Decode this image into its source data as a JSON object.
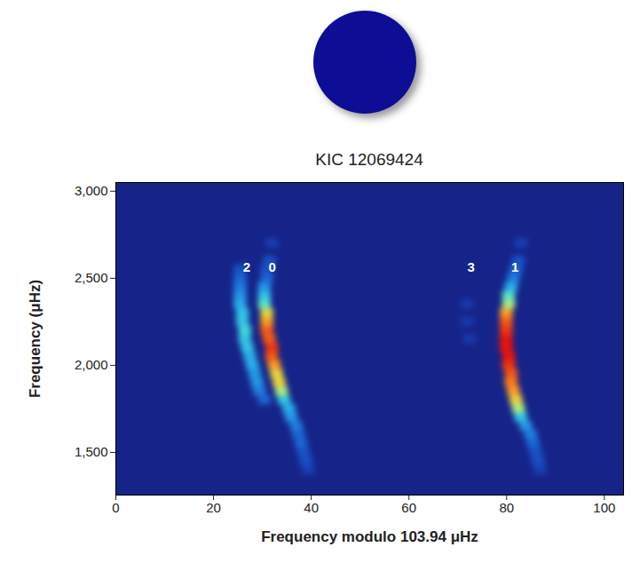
{
  "chart_data": {
    "type": "heatmap",
    "title": "KIC 12069424",
    "x_label": "Frequency modulo 103.94 μHz",
    "y_label": "Frequency (μHz)",
    "xlim": [
      0,
      103.94
    ],
    "ylim": [
      1255,
      3050
    ],
    "xticks": [
      0,
      20,
      40,
      60,
      80,
      100
    ],
    "yticks": [
      {
        "value": 1500,
        "label": "1,500"
      },
      {
        "value": 2000,
        "label": "2,000"
      },
      {
        "value": 2500,
        "label": "2,500"
      },
      {
        "value": 3000,
        "label": "3,000"
      }
    ],
    "clim": [
      0,
      10
    ],
    "cells": [
      {
        "x": 39.5,
        "y": 1400,
        "power": 1
      },
      {
        "x": 39,
        "y": 1450,
        "power": 1.5
      },
      {
        "x": 38.5,
        "y": 1500,
        "power": 1.5
      },
      {
        "x": 38,
        "y": 1550,
        "power": 2
      },
      {
        "x": 37.5,
        "y": 1600,
        "power": 2
      },
      {
        "x": 37,
        "y": 1650,
        "power": 2.5
      },
      {
        "x": 36,
        "y": 1700,
        "power": 3
      },
      {
        "x": 35.5,
        "y": 1750,
        "power": 3.5
      },
      {
        "x": 34.5,
        "y": 1800,
        "power": 4
      },
      {
        "x": 34,
        "y": 1850,
        "power": 6
      },
      {
        "x": 33.5,
        "y": 1900,
        "power": 7
      },
      {
        "x": 33,
        "y": 1950,
        "power": 7
      },
      {
        "x": 32.5,
        "y": 2000,
        "power": 8
      },
      {
        "x": 32,
        "y": 2050,
        "power": 9
      },
      {
        "x": 32,
        "y": 2100,
        "power": 9.5
      },
      {
        "x": 31.5,
        "y": 2150,
        "power": 9
      },
      {
        "x": 31,
        "y": 2200,
        "power": 9
      },
      {
        "x": 31,
        "y": 2250,
        "power": 8
      },
      {
        "x": 31,
        "y": 2300,
        "power": 7
      },
      {
        "x": 30.5,
        "y": 2350,
        "power": 5
      },
      {
        "x": 30.5,
        "y": 2400,
        "power": 4
      },
      {
        "x": 30.5,
        "y": 2450,
        "power": 3
      },
      {
        "x": 31,
        "y": 2500,
        "power": 2
      },
      {
        "x": 31,
        "y": 2550,
        "power": 1.5
      },
      {
        "x": 31.5,
        "y": 2600,
        "power": 1.5
      },
      {
        "x": 32,
        "y": 2700,
        "power": 1
      },
      {
        "x": 30.5,
        "y": 1800,
        "power": 2
      },
      {
        "x": 29.5,
        "y": 1850,
        "power": 2.5
      },
      {
        "x": 29,
        "y": 1900,
        "power": 3
      },
      {
        "x": 28.5,
        "y": 1950,
        "power": 3
      },
      {
        "x": 28,
        "y": 2000,
        "power": 3.5
      },
      {
        "x": 27.5,
        "y": 2050,
        "power": 3.5
      },
      {
        "x": 27,
        "y": 2100,
        "power": 4
      },
      {
        "x": 26.5,
        "y": 2150,
        "power": 4
      },
      {
        "x": 26.5,
        "y": 2200,
        "power": 4.5
      },
      {
        "x": 26,
        "y": 2250,
        "power": 4
      },
      {
        "x": 26,
        "y": 2300,
        "power": 4
      },
      {
        "x": 25.5,
        "y": 2350,
        "power": 3.5
      },
      {
        "x": 25.5,
        "y": 2400,
        "power": 3
      },
      {
        "x": 25.5,
        "y": 2450,
        "power": 2.5
      },
      {
        "x": 25.5,
        "y": 2500,
        "power": 2
      },
      {
        "x": 25.5,
        "y": 2550,
        "power": 1.5
      },
      {
        "x": 87,
        "y": 1400,
        "power": 1
      },
      {
        "x": 86.5,
        "y": 1450,
        "power": 1.5
      },
      {
        "x": 86,
        "y": 1500,
        "power": 1.5
      },
      {
        "x": 85.5,
        "y": 1550,
        "power": 2
      },
      {
        "x": 85,
        "y": 1600,
        "power": 2.5
      },
      {
        "x": 84,
        "y": 1650,
        "power": 3
      },
      {
        "x": 83,
        "y": 1700,
        "power": 4
      },
      {
        "x": 82.5,
        "y": 1750,
        "power": 6
      },
      {
        "x": 82,
        "y": 1800,
        "power": 7
      },
      {
        "x": 81.5,
        "y": 1850,
        "power": 8
      },
      {
        "x": 81,
        "y": 1900,
        "power": 8.5
      },
      {
        "x": 81,
        "y": 1950,
        "power": 9
      },
      {
        "x": 80.5,
        "y": 2000,
        "power": 9.5
      },
      {
        "x": 80.5,
        "y": 2050,
        "power": 10
      },
      {
        "x": 80,
        "y": 2100,
        "power": 10
      },
      {
        "x": 80,
        "y": 2150,
        "power": 10
      },
      {
        "x": 80,
        "y": 2200,
        "power": 9.5
      },
      {
        "x": 80,
        "y": 2250,
        "power": 9
      },
      {
        "x": 80,
        "y": 2300,
        "power": 8
      },
      {
        "x": 80.5,
        "y": 2350,
        "power": 6
      },
      {
        "x": 80.5,
        "y": 2400,
        "power": 5
      },
      {
        "x": 81,
        "y": 2450,
        "power": 3.5
      },
      {
        "x": 81.5,
        "y": 2500,
        "power": 2.5
      },
      {
        "x": 82,
        "y": 2550,
        "power": 2
      },
      {
        "x": 82.5,
        "y": 2600,
        "power": 1.5
      },
      {
        "x": 83,
        "y": 2700,
        "power": 1
      },
      {
        "x": 72.5,
        "y": 2150,
        "power": 0.8
      },
      {
        "x": 72,
        "y": 2250,
        "power": 0.8
      },
      {
        "x": 72,
        "y": 2350,
        "power": 0.8
      }
    ],
    "annotations": [
      {
        "text": "2",
        "x": 26.8,
        "y": 2560
      },
      {
        "text": "0",
        "x": 32,
        "y": 2560
      },
      {
        "text": "3",
        "x": 72.7,
        "y": 2560
      },
      {
        "text": "1",
        "x": 81.7,
        "y": 2560
      }
    ]
  }
}
